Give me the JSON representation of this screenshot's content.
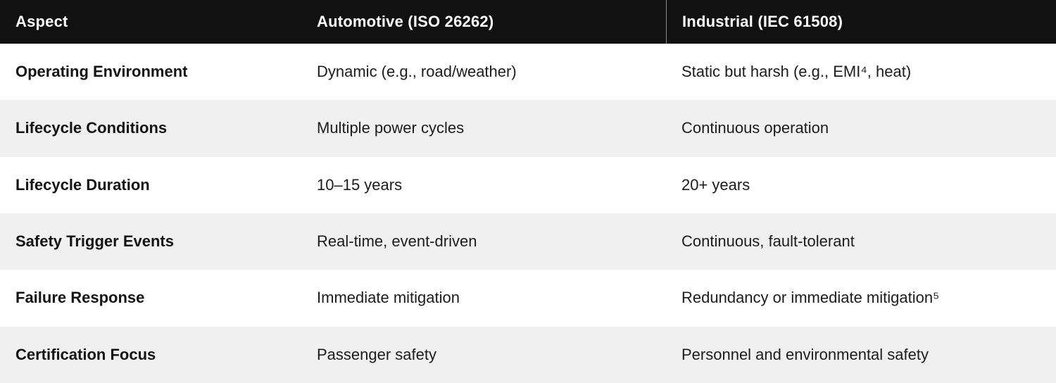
{
  "table": {
    "columns": [
      {
        "label": "Aspect"
      },
      {
        "label": "Automotive (ISO 26262)"
      },
      {
        "label": "Industrial (IEC 61508)"
      }
    ],
    "rows": [
      {
        "aspect": "Operating Environment",
        "automotive": "Dynamic (e.g., road/weather)",
        "industrial": "Static but harsh (e.g., EMI⁴, heat)"
      },
      {
        "aspect": "Lifecycle Conditions",
        "automotive": "Multiple power cycles",
        "industrial": "Continuous operation"
      },
      {
        "aspect": "Lifecycle Duration",
        "automotive": "10–15 years",
        "industrial": "20+ years"
      },
      {
        "aspect": "Safety Trigger Events",
        "automotive": "Real-time, event-driven",
        "industrial": "Continuous, fault-tolerant"
      },
      {
        "aspect": "Failure Response",
        "automotive": "Immediate mitigation",
        "industrial": "Redundancy or immediate mitigation⁵"
      },
      {
        "aspect": "Certification Focus",
        "automotive": "Passenger safety",
        "industrial": "Personnel and environmental safety"
      }
    ]
  },
  "colors": {
    "header_bg": "#111111",
    "header_text": "#ffffff",
    "stripe_bg": "#f0f0f0",
    "body_text": "#1c1c1c",
    "header_divider": "#8a8a8a"
  }
}
